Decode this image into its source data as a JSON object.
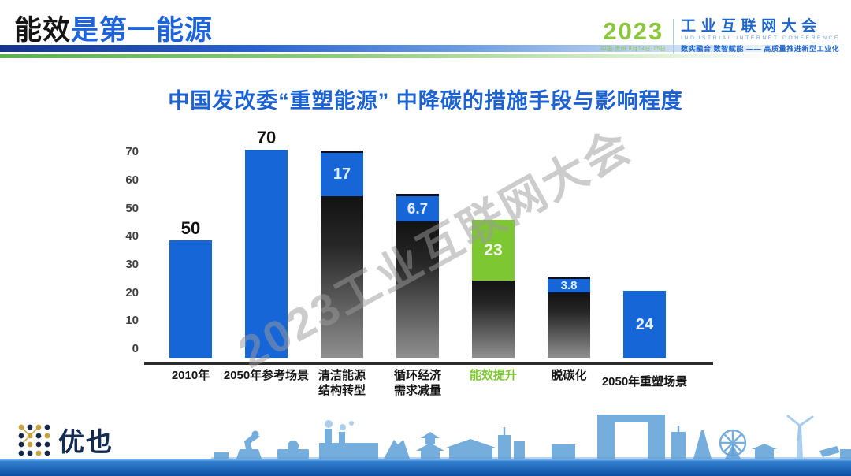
{
  "slide": {
    "title_black": "能效",
    "title_blue": "是第一能源",
    "watermark": "2023工业互联网大会",
    "footer_logo_text": "优也",
    "conference_logo": {
      "year": "2023",
      "venue": "中国·贵州 8月14日-15日",
      "name": "工业互联网大会",
      "name_en": "INDUSTRIAL INTERNET CONFERENCE",
      "slogan": "数实融合  数智赋能 —— 高质量推进新型工业化"
    }
  },
  "chart_data": {
    "type": "bar",
    "subtype": "stacked-waterfall",
    "title": "中国发改委“重塑能源” 中降碳的措施手段与影响程度",
    "categories": [
      "2010年",
      "2050年参考场景",
      "清洁能源\n结构转型",
      "循环经济\n需求减量",
      "能效提升",
      "脱碳化",
      "2050年重塑场景"
    ],
    "values": [
      50,
      70,
      17,
      6.7,
      23,
      3.8,
      24
    ],
    "ylabel": "",
    "xlabel": "",
    "ylim": [
      0,
      70
    ],
    "yticks": [
      0,
      10,
      20,
      30,
      40,
      50,
      60,
      70
    ],
    "grid": false,
    "legend": false,
    "colors": {
      "blue": "#1766d8",
      "green": "#7dc832",
      "dark_gradient_top": "#131313",
      "dark_gradient_bottom": "#8f8f8f",
      "highlight_category": "#7dc832"
    },
    "bars": [
      {
        "category": "2010年",
        "value": 50,
        "value_label": "50",
        "label_placement": "above",
        "segments": [
          {
            "color": "blue",
            "units": 40.0
          }
        ]
      },
      {
        "category": "2050年参考场景",
        "value": 70,
        "value_label": "70",
        "label_placement": "above",
        "segments": [
          {
            "color": "blue",
            "units": 71.0
          }
        ]
      },
      {
        "category": "清洁能源\n结构转型",
        "value": 17,
        "cap": true,
        "segments": [
          {
            "color": "dark",
            "units": 55.0
          },
          {
            "color": "blue",
            "units": 15.0,
            "label": "17",
            "label_size": 20
          }
        ]
      },
      {
        "category": "循环经济\n需求减量",
        "value": 6.7,
        "cap": true,
        "segments": [
          {
            "color": "dark",
            "units": 46.5
          },
          {
            "color": "blue",
            "units": 8.6,
            "label": "6.7",
            "label_size": 19
          }
        ]
      },
      {
        "category": "能效提升",
        "value": 23,
        "category_color": "#7dc832",
        "segments": [
          {
            "color": "dark",
            "units": 26.3
          },
          {
            "color": "green",
            "units": 20.7,
            "label": "23",
            "label_size": 21
          }
        ]
      },
      {
        "category": "脱碳化",
        "value": 3.8,
        "cap": true,
        "segments": [
          {
            "color": "dark",
            "units": 22.3
          },
          {
            "color": "blue",
            "units": 4.6,
            "label": "3.8",
            "label_size": 15
          }
        ]
      },
      {
        "category": "2050年重塑场景",
        "value": 24,
        "label_offset_y": 8,
        "segments": [
          {
            "color": "blue",
            "units": 22.8,
            "label": "24",
            "label_size": 20
          }
        ]
      }
    ]
  }
}
